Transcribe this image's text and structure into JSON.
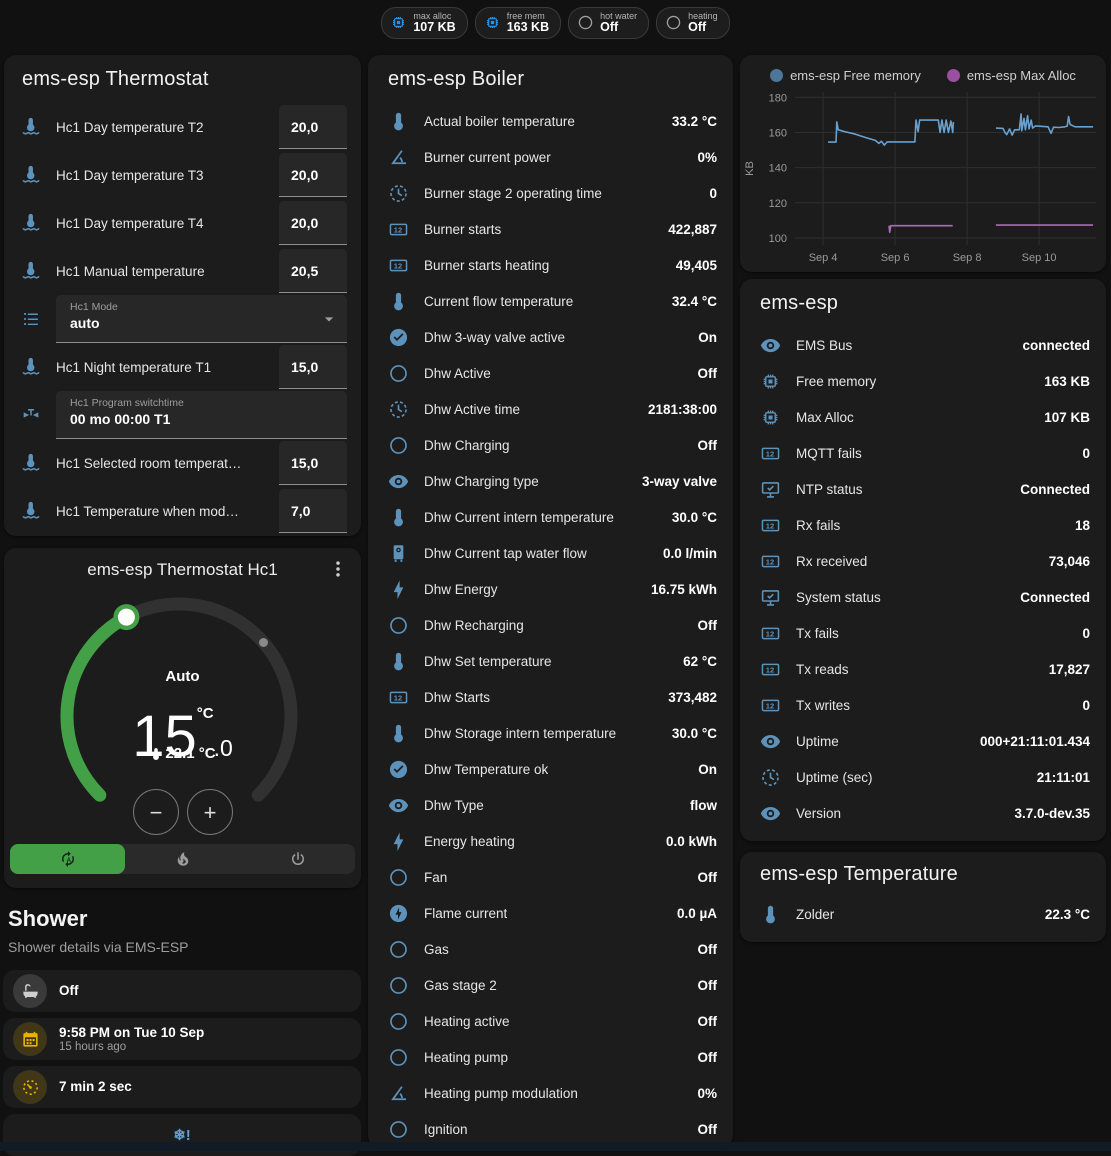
{
  "badges": [
    {
      "icon": "chip",
      "icon_color": "#2196f3",
      "label": "max alloc",
      "value": "107 KB"
    },
    {
      "icon": "chip",
      "icon_color": "#2196f3",
      "label": "free mem",
      "value": "163 KB"
    },
    {
      "icon": "circle",
      "icon_color": "#9e9e9e",
      "label": "hot water",
      "value": "Off"
    },
    {
      "icon": "circle",
      "icon_color": "#9e9e9e",
      "label": "heating",
      "value": "Off"
    }
  ],
  "thermostat_card": {
    "title": "ems-esp Thermostat",
    "rows": [
      {
        "type": "number",
        "icon": "thermometer-water",
        "label": "Hc1 Day temperature T2",
        "value": "20,0"
      },
      {
        "type": "number",
        "icon": "thermometer-water",
        "label": "Hc1 Day temperature T3",
        "value": "20,0"
      },
      {
        "type": "number",
        "icon": "thermometer-water",
        "label": "Hc1 Day temperature T4",
        "value": "20,0"
      },
      {
        "type": "number",
        "icon": "thermometer-water",
        "label": "Hc1 Manual temperature",
        "value": "20,5"
      },
      {
        "type": "select",
        "icon": "format-list",
        "label": "Hc1 Mode",
        "value": "auto"
      },
      {
        "type": "number",
        "icon": "thermometer-water",
        "label": "Hc1 Night temperature T1",
        "value": "15,0"
      },
      {
        "type": "text",
        "icon": "pipe-valve",
        "label": "Hc1 Program switchtime",
        "value": "00 mo 00:00 T1"
      },
      {
        "type": "number",
        "icon": "thermometer-water",
        "label": "Hc1 Selected room temperat…",
        "value": "15,0"
      },
      {
        "type": "number",
        "icon": "thermometer-water",
        "label": "Hc1 Temperature when mod…",
        "value": "7,0"
      }
    ]
  },
  "hc1_card": {
    "title": "ems-esp Thermostat Hc1",
    "preset": "Auto",
    "target_int": "15",
    "target_dec": ".0",
    "target_unit": "°C",
    "current_temp": "22.1 °C",
    "decrease_label": "−",
    "increase_label": "+",
    "modes": [
      {
        "icon": "autorenew",
        "name": "auto",
        "active": true
      },
      {
        "icon": "fire",
        "name": "heat",
        "active": false
      },
      {
        "icon": "power",
        "name": "off",
        "active": false
      }
    ]
  },
  "shower": {
    "title": "Shower",
    "subtitle": "Shower details via EMS-ESP",
    "items": [
      {
        "icon": "bath",
        "icon_bg": "gray",
        "title": "Off",
        "subtitle": ""
      },
      {
        "icon": "calendar",
        "icon_bg": "amber",
        "title": "9:58 PM on Tue 10 Sep",
        "subtitle": "15 hours ago"
      },
      {
        "icon": "timer",
        "icon_bg": "amber",
        "title": "7 min 2 sec",
        "subtitle": ""
      },
      {
        "icon": "snowflake-alert",
        "icon_bg": "none",
        "title": "❄!",
        "subtitle": "",
        "centered": true
      }
    ]
  },
  "boiler_card": {
    "title": "ems-esp Boiler",
    "rows": [
      {
        "icon": "thermometer",
        "label": "Actual boiler temperature",
        "value": "33.2 °C"
      },
      {
        "icon": "angle",
        "label": "Burner current power",
        "value": "0%"
      },
      {
        "icon": "clock",
        "label": "Burner stage 2 operating time",
        "value": "0"
      },
      {
        "icon": "counter",
        "label": "Burner starts",
        "value": "422,887"
      },
      {
        "icon": "counter",
        "label": "Burner starts heating",
        "value": "49,405"
      },
      {
        "icon": "thermometer",
        "label": "Current flow temperature",
        "value": "32.4 °C"
      },
      {
        "icon": "check-circle",
        "label": "Dhw 3-way valve active",
        "value": "On"
      },
      {
        "icon": "circle",
        "label": "Dhw Active",
        "value": "Off"
      },
      {
        "icon": "clock",
        "label": "Dhw Active time",
        "value": "2181:38:00"
      },
      {
        "icon": "circle",
        "label": "Dhw Charging",
        "value": "Off"
      },
      {
        "icon": "eye",
        "label": "Dhw Charging type",
        "value": "3-way valve"
      },
      {
        "icon": "thermometer",
        "label": "Dhw Current intern temperature",
        "value": "30.0 °C"
      },
      {
        "icon": "boiler",
        "label": "Dhw Current tap water flow",
        "value": "0.0 l/min"
      },
      {
        "icon": "flash",
        "label": "Dhw Energy",
        "value": "16.75 kWh"
      },
      {
        "icon": "circle",
        "label": "Dhw Recharging",
        "value": "Off"
      },
      {
        "icon": "thermometer",
        "label": "Dhw Set temperature",
        "value": "62 °C"
      },
      {
        "icon": "counter",
        "label": "Dhw Starts",
        "value": "373,482"
      },
      {
        "icon": "thermometer",
        "label": "Dhw Storage intern temperature",
        "value": "30.0 °C"
      },
      {
        "icon": "check-circle",
        "label": "Dhw Temperature ok",
        "value": "On"
      },
      {
        "icon": "eye",
        "label": "Dhw Type",
        "value": "flow"
      },
      {
        "icon": "flash",
        "label": "Energy heating",
        "value": "0.0 kWh"
      },
      {
        "icon": "circle",
        "label": "Fan",
        "value": "Off"
      },
      {
        "icon": "circle-flash",
        "label": "Flame current",
        "value": "0.0 µA"
      },
      {
        "icon": "circle",
        "label": "Gas",
        "value": "Off"
      },
      {
        "icon": "circle",
        "label": "Gas stage 2",
        "value": "Off"
      },
      {
        "icon": "circle",
        "label": "Heating active",
        "value": "Off"
      },
      {
        "icon": "circle",
        "label": "Heating pump",
        "value": "Off"
      },
      {
        "icon": "angle",
        "label": "Heating pump modulation",
        "value": "0%"
      },
      {
        "icon": "circle",
        "label": "Ignition",
        "value": "Off"
      }
    ]
  },
  "emsesp_card": {
    "title": "ems-esp",
    "rows": [
      {
        "icon": "eye",
        "label": "EMS Bus",
        "value": "connected"
      },
      {
        "icon": "chip",
        "label": "Free memory",
        "value": "163 KB"
      },
      {
        "icon": "chip",
        "label": "Max Alloc",
        "value": "107 KB"
      },
      {
        "icon": "counter",
        "label": "MQTT fails",
        "value": "0"
      },
      {
        "icon": "monitor",
        "label": "NTP status",
        "value": "Connected"
      },
      {
        "icon": "counter",
        "label": "Rx fails",
        "value": "18"
      },
      {
        "icon": "counter",
        "label": "Rx received",
        "value": "73,046"
      },
      {
        "icon": "monitor",
        "label": "System status",
        "value": "Connected"
      },
      {
        "icon": "counter",
        "label": "Tx fails",
        "value": "0"
      },
      {
        "icon": "counter",
        "label": "Tx reads",
        "value": "17,827"
      },
      {
        "icon": "counter",
        "label": "Tx writes",
        "value": "0"
      },
      {
        "icon": "eye",
        "label": "Uptime",
        "value": "000+21:11:01.434"
      },
      {
        "icon": "clock",
        "label": "Uptime (sec)",
        "value": "21:11:01"
      },
      {
        "icon": "eye",
        "label": "Version",
        "value": "3.7.0-dev.35"
      }
    ]
  },
  "temperature_card": {
    "title": "ems-esp Temperature",
    "rows": [
      {
        "icon": "thermometer",
        "label": "Zolder",
        "value": "22.3 °C"
      }
    ]
  },
  "chart_data": {
    "type": "line",
    "ylabel": "KB",
    "ylim": [
      96,
      183
    ],
    "yticks": [
      100,
      120,
      140,
      160,
      180
    ],
    "xlim": [
      3.22,
      11.58
    ],
    "xticks": [
      {
        "label": "Sep 4",
        "x": 4
      },
      {
        "label": "Sep 6",
        "x": 6
      },
      {
        "label": "Sep 8",
        "x": 8
      },
      {
        "label": "Sep 10",
        "x": 10
      }
    ],
    "grid": true,
    "legend_position": "top",
    "series": [
      {
        "name": "ems-esp Free memory",
        "color": "#68a1cf",
        "dot_color": "#4d7699",
        "points": [
          [
            4.14,
            154.5
          ],
          [
            4.36,
            154.5
          ],
          [
            4.38,
            166
          ],
          [
            4.42,
            161.5
          ],
          [
            4.6,
            160.5
          ],
          [
            4.9,
            159
          ],
          [
            5.2,
            157
          ],
          [
            5.45,
            155.5
          ],
          [
            5.55,
            153.8
          ],
          [
            5.62,
            155
          ],
          [
            5.7,
            152.8
          ],
          [
            5.78,
            154.6
          ],
          [
            6.55,
            154.6
          ],
          [
            6.58,
            167
          ],
          [
            6.64,
            160.5
          ],
          [
            6.68,
            167
          ],
          [
            7.2,
            167
          ],
          [
            7.25,
            160
          ],
          [
            7.3,
            167
          ],
          [
            7.36,
            160
          ],
          [
            7.42,
            167
          ],
          [
            7.48,
            160
          ],
          [
            7.55,
            166.5
          ],
          [
            7.6,
            160
          ],
          [
            7.62,
            166
          ],
          null,
          [
            8.8,
            162.5
          ],
          [
            9.0,
            162.3
          ],
          [
            9.05,
            160
          ],
          [
            9.1,
            158.8
          ],
          [
            9.18,
            162
          ],
          [
            9.25,
            158.5
          ],
          [
            9.32,
            161.5
          ],
          [
            9.45,
            161.5
          ],
          [
            9.5,
            170.5
          ],
          [
            9.52,
            161
          ],
          [
            9.58,
            168
          ],
          [
            9.62,
            161.5
          ],
          [
            9.68,
            169.5
          ],
          [
            9.72,
            162
          ],
          [
            9.78,
            167
          ],
          [
            9.82,
            162.5
          ],
          [
            9.9,
            163.7
          ],
          [
            10.25,
            163.2
          ],
          [
            10.33,
            159.5
          ],
          [
            10.4,
            163
          ],
          [
            10.55,
            162.8
          ],
          [
            10.72,
            163.2
          ],
          [
            10.78,
            163.6
          ],
          [
            10.82,
            169
          ],
          [
            10.86,
            164.5
          ],
          [
            11.0,
            163.2
          ],
          [
            11.5,
            163.2
          ]
        ]
      },
      {
        "name": "ems-esp Max Alloc",
        "color": "#b06ab3",
        "dot_color": "#9a4f9f",
        "points": [
          [
            5.83,
            107
          ],
          [
            5.85,
            103.3
          ],
          [
            5.88,
            107
          ],
          [
            7.6,
            107
          ],
          null,
          [
            8.8,
            107.3
          ],
          [
            11.5,
            107.3
          ]
        ]
      }
    ]
  }
}
